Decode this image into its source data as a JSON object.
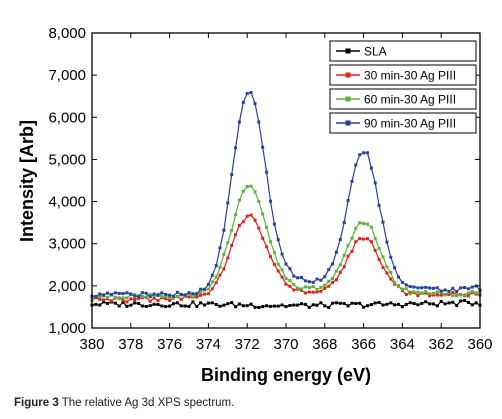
{
  "caption": {
    "label": "Figure 3",
    "text": "The relative Ag 3d XPS spectrum."
  },
  "chart_data": {
    "type": "line",
    "xlabel": "Binding energy (eV)",
    "ylabel": "Intensity [Arb]",
    "xlim": [
      380,
      360
    ],
    "ylim": [
      1000,
      8000
    ],
    "x_reversed": true,
    "x_ticks": [
      "380",
      "378",
      "376",
      "374",
      "372",
      "370",
      "368",
      "366",
      "364",
      "362",
      "360"
    ],
    "y_ticks": [
      "1,000",
      "2,000",
      "3,000",
      "4,000",
      "5,000",
      "6,000",
      "7,000",
      "8,000"
    ],
    "grid": false,
    "legend_position": "top-right",
    "series": [
      {
        "name": "SLA",
        "color": "#000000",
        "marker": "square",
        "baseline": [
          [
            380,
            1570
          ],
          [
            374,
            1560
          ],
          [
            370,
            1530
          ],
          [
            366,
            1550
          ],
          [
            362,
            1580
          ],
          [
            360,
            1600
          ]
        ],
        "peaks": [],
        "noise": 60
      },
      {
        "name": "30 min-30 Ag PIII",
        "color": "#e0201b",
        "marker": "square",
        "baseline": [
          [
            380,
            1670
          ],
          [
            376,
            1680
          ],
          [
            374,
            1720
          ],
          [
            372,
            1800
          ],
          [
            370,
            1900
          ],
          [
            368,
            1830
          ],
          [
            366,
            1850
          ],
          [
            364,
            1800
          ],
          [
            362,
            1780
          ],
          [
            360,
            1820
          ]
        ],
        "peaks": [
          [
            371.9,
            3650,
            0.9
          ],
          [
            366.0,
            3150,
            0.85
          ]
        ],
        "noise": 55
      },
      {
        "name": "60 min-30 Ag PIII",
        "color": "#5cb43a",
        "marker": "square",
        "baseline": [
          [
            380,
            1730
          ],
          [
            376,
            1760
          ],
          [
            374,
            1790
          ],
          [
            372,
            1880
          ],
          [
            370,
            1950
          ],
          [
            368,
            1900
          ],
          [
            366,
            1900
          ],
          [
            364,
            1830
          ],
          [
            362,
            1800
          ],
          [
            360,
            1850
          ]
        ],
        "peaks": [
          [
            371.9,
            4350,
            0.9
          ],
          [
            366.0,
            3520,
            0.85
          ]
        ],
        "noise": 55
      },
      {
        "name": "90 min-30 Ag PIII",
        "color": "#2b3f9e",
        "marker": "square",
        "baseline": [
          [
            380,
            1780
          ],
          [
            376,
            1790
          ],
          [
            374,
            1850
          ],
          [
            372,
            2000
          ],
          [
            370,
            2150
          ],
          [
            368,
            2100
          ],
          [
            366,
            2100
          ],
          [
            364,
            1950
          ],
          [
            362,
            1900
          ],
          [
            360,
            1950
          ]
        ],
        "peaks": [
          [
            371.9,
            6620,
            0.85
          ],
          [
            366.0,
            5200,
            0.8
          ]
        ],
        "noise": 55
      }
    ]
  }
}
